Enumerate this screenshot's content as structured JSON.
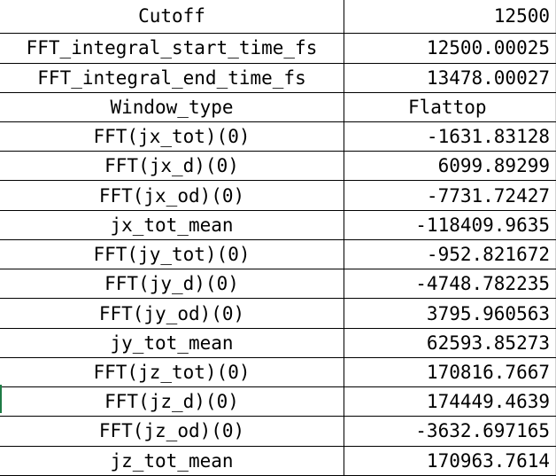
{
  "sheet": {
    "rows": [
      {
        "label": "Cutoff",
        "value": "12500"
      },
      {
        "label": "FFT_integral_start_time_fs",
        "value": "12500.00025"
      },
      {
        "label": "FFT_integral_end_time_fs",
        "value": "13478.00027"
      },
      {
        "label": "Window_type",
        "value": "Flattop"
      },
      {
        "label": "FFT(jx_tot)(0)",
        "value": "-1631.83128"
      },
      {
        "label": "FFT(jx_d)(0)",
        "value": "6099.89299"
      },
      {
        "label": "FFT(jx_od)(0)",
        "value": "-7731.72427"
      },
      {
        "label": "jx_tot_mean",
        "value": "-118409.9635"
      },
      {
        "label": "FFT(jy_tot)(0)",
        "value": "-952.821672"
      },
      {
        "label": "FFT(jy_d)(0)",
        "value": "-4748.782235"
      },
      {
        "label": "FFT(jy_od)(0)",
        "value": "3795.960563"
      },
      {
        "label": "jy_tot_mean",
        "value": "62593.85273"
      },
      {
        "label": "FFT(jz_tot)(0)",
        "value": "170816.7667"
      },
      {
        "label": "FFT(jz_d)(0)",
        "value": "174449.4639"
      },
      {
        "label": "FFT(jz_od)(0)",
        "value": "-3632.697165"
      },
      {
        "label": "jz_tot_mean",
        "value": "170963.7614"
      }
    ]
  },
  "colors": {
    "grid_line": "#000000",
    "light_grid_line": "#d4d4d4",
    "selection_marker": "#1e7b45"
  }
}
